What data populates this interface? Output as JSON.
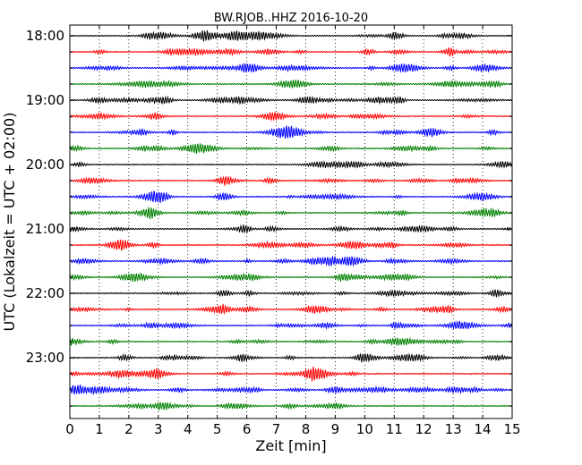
{
  "chart_data": {
    "type": "line",
    "title": "BW.RJOB..HHZ 2016-10-20",
    "xlabel": "Zeit  [min]",
    "ylabel": "UTC (Lokalzeit = UTC + 02:00)",
    "xlim": [
      0,
      15
    ],
    "x_ticks": [
      0,
      1,
      2,
      3,
      4,
      5,
      6,
      7,
      8,
      9,
      10,
      11,
      12,
      13,
      14,
      15
    ],
    "x_tick_labels": [
      "0",
      "1",
      "2",
      "3",
      "4",
      "5",
      "6",
      "7",
      "8",
      "9",
      "10",
      "11",
      "12",
      "13",
      "14",
      "15"
    ],
    "y_tick_labels": [
      "18:00",
      "19:00",
      "20:00",
      "21:00",
      "22:00",
      "23:00"
    ],
    "vertical_grid": "dotted",
    "trace_colors": [
      "#000000",
      "#ff0000",
      "#0000ff",
      "#008000"
    ],
    "trace_start_times": [
      "18:00",
      "18:15",
      "18:30",
      "18:45",
      "19:00",
      "19:15",
      "19:30",
      "19:45",
      "20:00",
      "20:15",
      "20:30",
      "20:45",
      "21:00",
      "21:15",
      "21:30",
      "21:45",
      "22:00",
      "22:15",
      "22:30",
      "22:45",
      "23:00",
      "23:15",
      "23:30",
      "23:45"
    ],
    "trace_minutes": 15
  }
}
